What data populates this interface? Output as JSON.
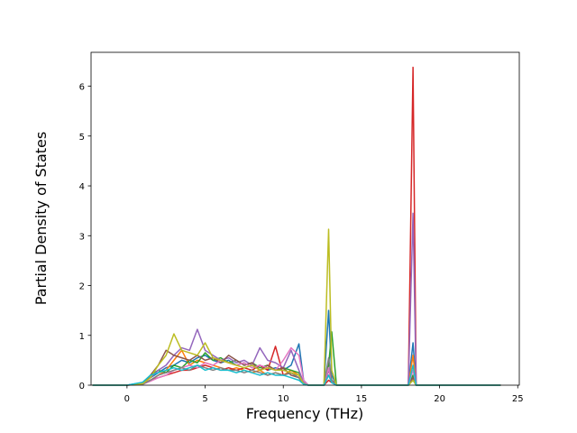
{
  "chart_data": {
    "type": "line",
    "x_label": "Frequency (THz)",
    "y_label": "Partial Density of States",
    "x": [
      -2.2,
      0,
      1,
      1.5,
      2,
      2.5,
      3,
      3.5,
      4,
      4.5,
      5,
      5.5,
      6,
      6.5,
      7,
      7.5,
      8,
      8.5,
      9,
      9.5,
      10,
      10.5,
      11,
      11.3,
      11.6,
      12.6,
      12.9,
      13.1,
      13.4,
      13.6,
      18.0,
      18.3,
      18.5,
      18.7,
      23.9
    ],
    "series": [
      {
        "color": "#1f77b4",
        "values": [
          0,
          0,
          0.05,
          0.15,
          0.25,
          0.35,
          0.4,
          0.5,
          0.45,
          0.55,
          0.6,
          0.5,
          0.45,
          0.5,
          0.4,
          0.45,
          0.35,
          0.4,
          0.3,
          0.35,
          0.3,
          0.4,
          0.83,
          0.1,
          0,
          0,
          1.5,
          0.2,
          0,
          0,
          0,
          0.85,
          0,
          0,
          0
        ]
      },
      {
        "color": "#ff7f0e",
        "values": [
          0,
          0,
          0.03,
          0.1,
          0.2,
          0.3,
          0.5,
          0.7,
          0.4,
          0.5,
          0.45,
          0.4,
          0.35,
          0.3,
          0.35,
          0.3,
          0.25,
          0.3,
          0.2,
          0.25,
          0.2,
          0.3,
          0.2,
          0.05,
          0,
          0,
          0.3,
          0.1,
          0,
          0,
          0,
          0.6,
          0,
          0,
          0
        ]
      },
      {
        "color": "#2ca02c",
        "values": [
          0,
          0,
          0.04,
          0.2,
          0.3,
          0.25,
          0.4,
          0.35,
          0.5,
          0.45,
          0.65,
          0.5,
          0.55,
          0.45,
          0.5,
          0.4,
          0.45,
          0.35,
          0.4,
          0.3,
          0.35,
          0.3,
          0.25,
          0.05,
          0,
          0,
          0.4,
          1.07,
          0,
          0,
          0,
          0.2,
          0,
          0,
          0
        ]
      },
      {
        "color": "#d62728",
        "values": [
          0,
          0,
          0.02,
          0.1,
          0.15,
          0.2,
          0.25,
          0.3,
          0.3,
          0.35,
          0.4,
          0.35,
          0.3,
          0.35,
          0.3,
          0.35,
          0.3,
          0.4,
          0.3,
          0.78,
          0.2,
          0.25,
          0.15,
          0.03,
          0,
          0,
          0.1,
          0.05,
          0,
          0,
          0,
          6.38,
          0,
          0,
          0
        ]
      },
      {
        "color": "#9467bd",
        "values": [
          0,
          0,
          0.05,
          0.15,
          0.3,
          0.4,
          0.6,
          0.75,
          0.7,
          1.12,
          0.7,
          0.6,
          0.5,
          0.55,
          0.45,
          0.5,
          0.4,
          0.75,
          0.5,
          0.45,
          0.35,
          0.7,
          0.3,
          0.05,
          0,
          0,
          0.3,
          0.1,
          0,
          0,
          0,
          3.45,
          0,
          0,
          0
        ]
      },
      {
        "color": "#8c564b",
        "values": [
          0,
          0,
          0.03,
          0.2,
          0.4,
          0.7,
          0.6,
          0.55,
          0.5,
          0.6,
          0.5,
          0.55,
          0.45,
          0.6,
          0.5,
          0.4,
          0.45,
          0.3,
          0.4,
          0.3,
          0.35,
          0.2,
          0.15,
          0.02,
          0,
          0,
          0.2,
          0.1,
          0,
          0,
          0,
          0.15,
          0,
          0,
          0
        ]
      },
      {
        "color": "#e377c2",
        "values": [
          0,
          0,
          0.02,
          0.08,
          0.15,
          0.2,
          0.3,
          0.35,
          0.4,
          0.35,
          0.45,
          0.4,
          0.5,
          0.45,
          0.4,
          0.45,
          0.35,
          0.4,
          0.35,
          0.3,
          0.5,
          0.75,
          0.6,
          0.1,
          0,
          0,
          0.35,
          0.05,
          0,
          0,
          0,
          0.3,
          0,
          0,
          0
        ]
      },
      {
        "color": "#7f7f7f",
        "values": [
          0,
          0,
          0.02,
          0.1,
          0.2,
          0.25,
          0.3,
          0.35,
          0.3,
          0.4,
          0.35,
          0.3,
          0.35,
          0.3,
          0.3,
          0.25,
          0.3,
          0.25,
          0.2,
          0.25,
          0.2,
          0.25,
          0.15,
          0.02,
          0,
          0,
          0.55,
          0.1,
          0,
          0,
          0,
          0.1,
          0,
          0,
          0
        ]
      },
      {
        "color": "#bcbd22",
        "values": [
          0,
          0,
          0.03,
          0.15,
          0.4,
          0.6,
          1.03,
          0.7,
          0.65,
          0.6,
          0.85,
          0.55,
          0.5,
          0.45,
          0.4,
          0.35,
          0.4,
          0.3,
          0.35,
          0.3,
          0.3,
          0.25,
          0.2,
          0.03,
          0,
          0,
          3.13,
          0.3,
          0,
          0,
          0,
          0.1,
          0,
          0,
          0
        ]
      },
      {
        "color": "#17becf",
        "values": [
          0,
          0,
          0.06,
          0.2,
          0.25,
          0.3,
          0.35,
          0.3,
          0.35,
          0.4,
          0.3,
          0.35,
          0.3,
          0.3,
          0.25,
          0.3,
          0.25,
          0.2,
          0.25,
          0.2,
          0.2,
          0.15,
          0.1,
          0.02,
          0,
          0,
          0.2,
          0.05,
          0,
          0,
          0,
          0.4,
          0,
          0,
          0
        ]
      }
    ],
    "xlim": [
      -2.3,
      25.1
    ],
    "ylim": [
      0,
      6.68
    ],
    "xticks": [
      0,
      5,
      10,
      15,
      20,
      25
    ],
    "yticks": [
      0,
      1,
      2,
      3,
      4,
      5,
      6
    ],
    "grid": false
  }
}
